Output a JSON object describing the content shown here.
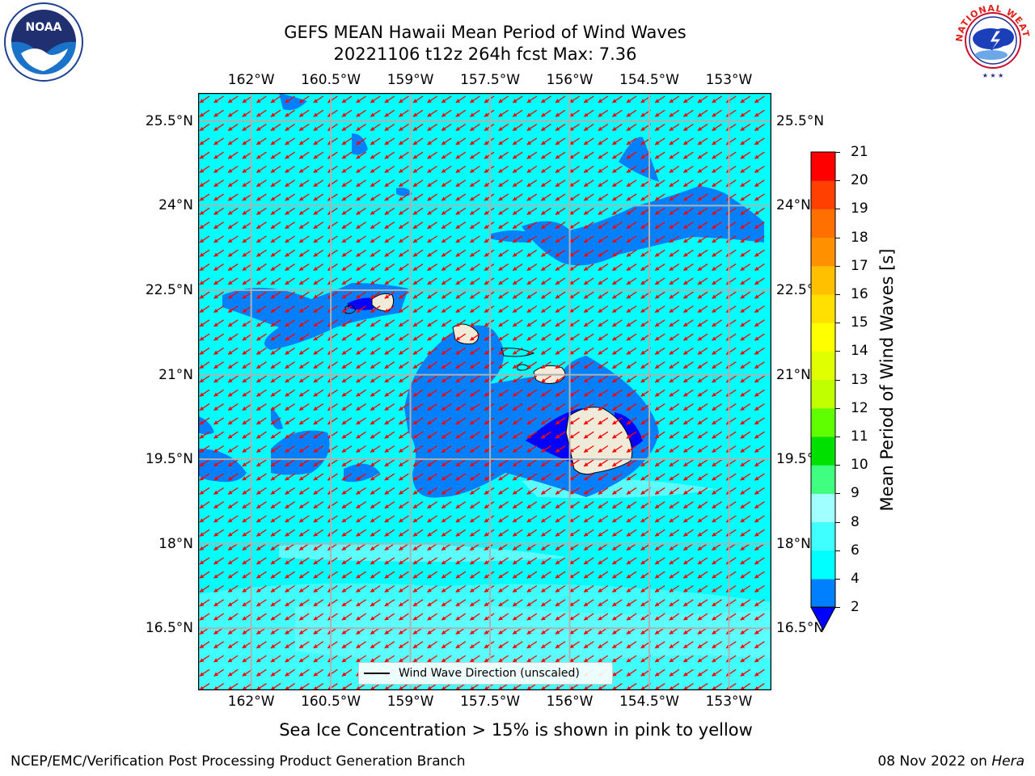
{
  "header": {
    "title_line1": "GEFS MEAN Hawaii Mean Period of Wind Waves",
    "title_line2": "20221106 t12z 264h fcst   Max: 7.36"
  },
  "logos": {
    "left": "noaa-logo",
    "right": "national-weather-service-logo",
    "noaa_text": "NOAA",
    "nws_text": "NATIONAL WEATHER SERVICE"
  },
  "map": {
    "lon_labels": [
      "162°W",
      "160.5°W",
      "159°W",
      "157.5°W",
      "156°W",
      "154.5°W",
      "153°W"
    ],
    "lat_labels": [
      "25.5°N",
      "24°N",
      "22.5°N",
      "21°N",
      "19.5°N",
      "18°N",
      "16.5°N"
    ],
    "lon_range": [
      -163.0,
      -152.2
    ],
    "lat_range": [
      15.4,
      26.0
    ],
    "arrow_color": "#ff0000",
    "ocean_color": "#00ffff",
    "land_color": "#f0ead8",
    "legend_label": "Wind Wave Direction (unscaled)"
  },
  "colorbar": {
    "label": "Mean Period of Wind Waves [s]",
    "ticks": [
      "2",
      "4",
      "6",
      "8",
      "9",
      "10",
      "11",
      "12",
      "13",
      "14",
      "15",
      "16",
      "17",
      "18",
      "19",
      "20",
      "21"
    ],
    "colors": [
      "#0080ff",
      "#00ffff",
      "#40ffff",
      "#a0ffff",
      "#40ff80",
      "#00e000",
      "#60ff00",
      "#c0ff00",
      "#e0ff00",
      "#ffff00",
      "#ffe000",
      "#ffc000",
      "#ff9000",
      "#ff7000",
      "#ff4000",
      "#ff0000"
    ],
    "under_color": "#0000ff"
  },
  "subtitle": "Sea Ice Concentration > 15% is shown in pink to yellow",
  "footer": {
    "left": "NCEP/EMC/Verification Post Processing Product Generation Branch",
    "date": "08 Nov 2022 on ",
    "host": "Hera"
  }
}
